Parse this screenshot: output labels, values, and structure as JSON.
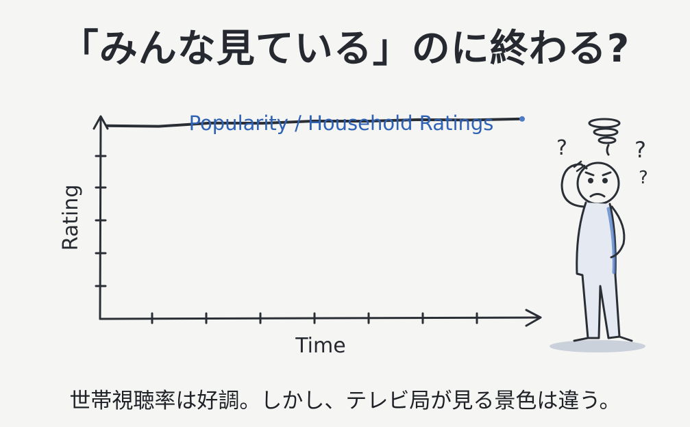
{
  "title": "「みんな見ている」のに終わる?",
  "caption": "世帯視聴率は好調。しかし、テレビ局が見る景色は違う。",
  "chart_data": {
    "type": "line",
    "xlabel": "Time",
    "ylabel": "Rating",
    "x": [
      0,
      1,
      2,
      3,
      4,
      5,
      6,
      7,
      8
    ],
    "xlim": [
      0,
      8
    ],
    "ylim": [
      0,
      5
    ],
    "series": [
      {
        "name": "Popularity / Household Ratings",
        "values": [
          4.8,
          4.82,
          4.85,
          4.88,
          4.9,
          4.93,
          4.95,
          4.96,
          4.97
        ]
      }
    ],
    "grid": false,
    "colors": {
      "series_line": "#2a2e35",
      "series_label": "#2f62b4",
      "axis": "#2a2e35",
      "figure_shading": "#4f7bc4"
    }
  },
  "figure": {
    "description_icon": "confused-stick-figure",
    "question_marks": [
      "?",
      "?",
      "?"
    ]
  }
}
